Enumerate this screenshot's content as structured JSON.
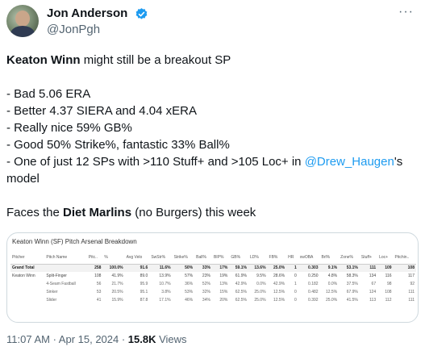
{
  "author": {
    "name": "Jon Anderson",
    "handle": "@JonPgh"
  },
  "more_label": "···",
  "tweet": {
    "line1_bold": "Keaton Winn",
    "line1_rest": " might still be a breakout SP",
    "bullets": [
      "- Bad 5.06 ERA",
      "- Better 4.37 SIERA and 4.04 xERA",
      "- Really nice 59% GB%",
      "- Good 50% Strike%, fantastic 33% Ball%"
    ],
    "last_prefix": "- One of just 12 SPs with >110 Stuff+ and >105 Loc+ in ",
    "mention": "@Drew_Haugen",
    "last_suffix": "'s",
    "last_wrap": "model",
    "faces_prefix": "Faces the ",
    "faces_bold": "Diet Marlins",
    "faces_suffix": " (no Burgers) this week"
  },
  "card": {
    "title": "Keaton Winn (SF) Pitch Arsenal Breakdown",
    "headers": [
      "Pitcher",
      "Pitch Name",
      "Pitc..",
      "%",
      "Avg Velo",
      "SwStr%",
      "Strike%",
      "Ball%",
      "BIP%",
      "GB%",
      "LD%",
      "FB%",
      "HR",
      "xwOBA",
      "Brl%",
      "Zone%",
      "Stuff+",
      "Loc+",
      "Pitchin.."
    ],
    "rows": [
      [
        "Grand Total",
        "",
        "258",
        "100.0%",
        "91.6",
        "11.6%",
        "50%",
        "33%",
        "17%",
        "59.1%",
        "13.6%",
        "25.0%",
        "1",
        "0.303",
        "9.1%",
        "53.1%",
        "111",
        "109",
        "108"
      ],
      [
        "Keaton Winn",
        "Split-Finger",
        "108",
        "41.9%",
        "89.0",
        "13.9%",
        "57%",
        "23%",
        "19%",
        "61.9%",
        "9.5%",
        "28.6%",
        "0",
        "0.250",
        "4.8%",
        "58.3%",
        "134",
        "116",
        "117"
      ],
      [
        "",
        "4-Seam Fastball",
        "56",
        "21.7%",
        "95.9",
        "10.7%",
        "36%",
        "52%",
        "13%",
        "42.9%",
        "0.0%",
        "42.9%",
        "1",
        "0.182",
        "0.0%",
        "37.5%",
        "67",
        "98",
        "92"
      ],
      [
        "",
        "Sinker",
        "53",
        "20.5%",
        "95.1",
        "3.8%",
        "53%",
        "32%",
        "15%",
        "62.5%",
        "25.0%",
        "12.5%",
        "0",
        "0.482",
        "12.5%",
        "67.9%",
        "124",
        "108",
        "111"
      ],
      [
        "",
        "Slider",
        "41",
        "15.9%",
        "87.8",
        "17.1%",
        "46%",
        "34%",
        "20%",
        "62.5%",
        "25.0%",
        "12.5%",
        "0",
        "0.392",
        "25.0%",
        "41.5%",
        "113",
        "112",
        "111"
      ]
    ]
  },
  "meta": {
    "time": "11:07 AM · Apr 15, 2024 · ",
    "views": "15.8K",
    "views_label": " Views"
  },
  "colors": {
    "link": "#1d9bf0",
    "verified": "#1d9bf0",
    "muted": "#536471"
  }
}
